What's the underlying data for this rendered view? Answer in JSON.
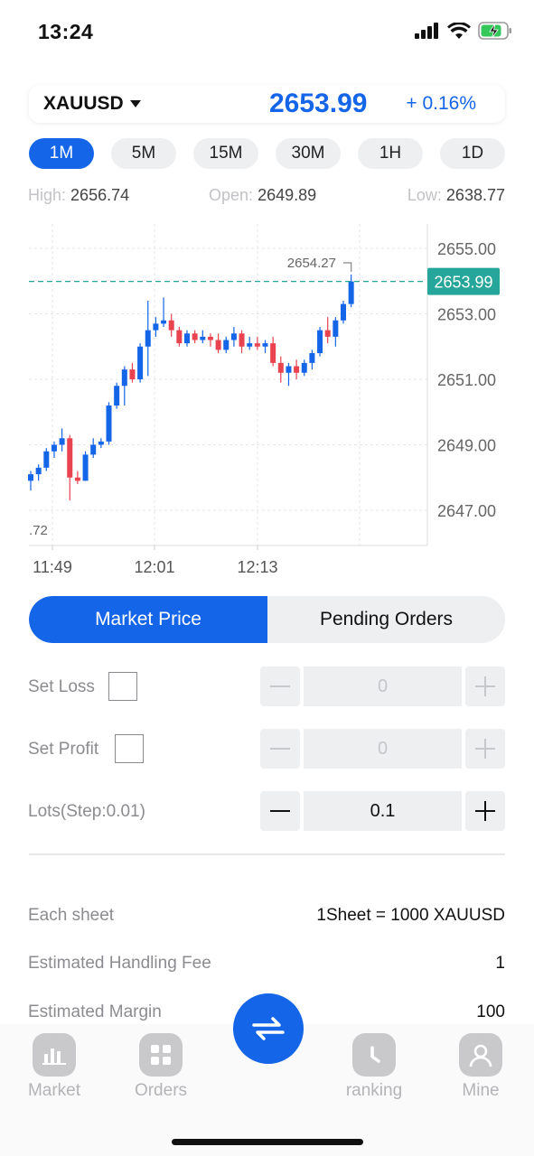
{
  "status": {
    "time": "13:24"
  },
  "ticker": {
    "symbol": "XAUUSD",
    "price": "2653.99",
    "change": "+ 0.16%"
  },
  "timeframes": [
    {
      "label": "1M",
      "active": true
    },
    {
      "label": "5M",
      "active": false
    },
    {
      "label": "15M",
      "active": false
    },
    {
      "label": "30M",
      "active": false
    },
    {
      "label": "1H",
      "active": false
    },
    {
      "label": "1D",
      "active": false
    }
  ],
  "stats": {
    "high_label": "High:",
    "high": "2656.74",
    "open_label": "Open:",
    "open": "2649.89",
    "low_label": "Low:",
    "low": "2638.77"
  },
  "chart_data": {
    "type": "candlestick",
    "y_ticks": [
      "2655.00",
      "2653.00",
      "2651.00",
      "2649.00",
      "2647.00"
    ],
    "x_ticks": [
      "11:49",
      "12:01",
      "12:13"
    ],
    "current_price_label": "2653.99",
    "high_marker": "2654.27",
    "low_marker_partial": ".72",
    "grid": true,
    "colors": {
      "up": "#1565e8",
      "down": "#e8434f",
      "price_line": "#26a69a"
    },
    "candles": [
      {
        "o": 2647.9,
        "h": 2648.2,
        "l": 2647.6,
        "c": 2648.1
      },
      {
        "o": 2648.1,
        "h": 2648.4,
        "l": 2647.9,
        "c": 2648.3
      },
      {
        "o": 2648.3,
        "h": 2648.9,
        "l": 2648.2,
        "c": 2648.8
      },
      {
        "o": 2648.8,
        "h": 2649.1,
        "l": 2648.6,
        "c": 2649.0
      },
      {
        "o": 2649.0,
        "h": 2649.5,
        "l": 2648.8,
        "c": 2649.2
      },
      {
        "o": 2649.2,
        "h": 2649.3,
        "l": 2647.3,
        "c": 2648.0
      },
      {
        "o": 2648.0,
        "h": 2648.2,
        "l": 2647.8,
        "c": 2647.9
      },
      {
        "o": 2647.9,
        "h": 2648.8,
        "l": 2647.9,
        "c": 2648.7
      },
      {
        "o": 2648.7,
        "h": 2649.2,
        "l": 2648.6,
        "c": 2649.0
      },
      {
        "o": 2649.0,
        "h": 2649.2,
        "l": 2648.9,
        "c": 2649.1
      },
      {
        "o": 2649.1,
        "h": 2650.3,
        "l": 2649.0,
        "c": 2650.2
      },
      {
        "o": 2650.2,
        "h": 2650.9,
        "l": 2650.1,
        "c": 2650.8
      },
      {
        "o": 2650.8,
        "h": 2651.4,
        "l": 2650.2,
        "c": 2651.3
      },
      {
        "o": 2651.3,
        "h": 2651.5,
        "l": 2650.9,
        "c": 2651.0
      },
      {
        "o": 2651.0,
        "h": 2652.1,
        "l": 2650.9,
        "c": 2652.0
      },
      {
        "o": 2652.0,
        "h": 2653.4,
        "l": 2651.1,
        "c": 2652.5
      },
      {
        "o": 2652.5,
        "h": 2652.9,
        "l": 2652.3,
        "c": 2652.7
      },
      {
        "o": 2652.7,
        "h": 2653.5,
        "l": 2652.6,
        "c": 2652.8
      },
      {
        "o": 2652.8,
        "h": 2653.0,
        "l": 2652.3,
        "c": 2652.5
      },
      {
        "o": 2652.5,
        "h": 2652.6,
        "l": 2652.0,
        "c": 2652.1
      },
      {
        "o": 2652.1,
        "h": 2652.5,
        "l": 2652.0,
        "c": 2652.4
      },
      {
        "o": 2652.4,
        "h": 2652.5,
        "l": 2652.1,
        "c": 2652.2
      },
      {
        "o": 2652.2,
        "h": 2652.5,
        "l": 2652.1,
        "c": 2652.3
      },
      {
        "o": 2652.3,
        "h": 2652.4,
        "l": 2652.0,
        "c": 2652.2
      },
      {
        "o": 2652.2,
        "h": 2652.4,
        "l": 2651.8,
        "c": 2651.9
      },
      {
        "o": 2651.9,
        "h": 2652.3,
        "l": 2651.8,
        "c": 2652.2
      },
      {
        "o": 2652.2,
        "h": 2652.6,
        "l": 2652.0,
        "c": 2652.4
      },
      {
        "o": 2652.4,
        "h": 2652.5,
        "l": 2651.8,
        "c": 2652.0
      },
      {
        "o": 2652.0,
        "h": 2652.3,
        "l": 2651.9,
        "c": 2652.1
      },
      {
        "o": 2652.1,
        "h": 2652.3,
        "l": 2651.9,
        "c": 2652.0
      },
      {
        "o": 2652.0,
        "h": 2652.2,
        "l": 2651.8,
        "c": 2652.1
      },
      {
        "o": 2652.1,
        "h": 2652.3,
        "l": 2651.4,
        "c": 2651.5
      },
      {
        "o": 2651.5,
        "h": 2651.7,
        "l": 2650.9,
        "c": 2651.2
      },
      {
        "o": 2651.2,
        "h": 2651.5,
        "l": 2650.8,
        "c": 2651.4
      },
      {
        "o": 2651.4,
        "h": 2651.6,
        "l": 2651.0,
        "c": 2651.2
      },
      {
        "o": 2651.2,
        "h": 2651.6,
        "l": 2651.1,
        "c": 2651.5
      },
      {
        "o": 2651.5,
        "h": 2651.9,
        "l": 2651.3,
        "c": 2651.8
      },
      {
        "o": 2651.8,
        "h": 2652.6,
        "l": 2651.7,
        "c": 2652.5
      },
      {
        "o": 2652.5,
        "h": 2652.9,
        "l": 2652.1,
        "c": 2652.3
      },
      {
        "o": 2652.3,
        "h": 2652.9,
        "l": 2652.0,
        "c": 2652.8
      },
      {
        "o": 2652.8,
        "h": 2653.4,
        "l": 2652.7,
        "c": 2653.3
      },
      {
        "o": 2653.3,
        "h": 2654.2,
        "l": 2653.2,
        "c": 2653.99
      }
    ]
  },
  "order_tabs": {
    "market": "Market Price",
    "pending": "Pending Orders"
  },
  "form": {
    "set_loss_label": "Set Loss",
    "set_loss_value": "0",
    "set_profit_label": "Set Profit",
    "set_profit_value": "0",
    "lots_label": "Lots(Step:0.01)",
    "lots_value": "0.1"
  },
  "info": {
    "sheet_label": "Each sheet",
    "sheet_value": "1Sheet = 1000 XAUUSD",
    "fee_label": "Estimated Handling Fee",
    "fee_value": "1",
    "margin_label": "Estimated Margin",
    "margin_value": "100"
  },
  "nav": {
    "market": "Market",
    "orders": "Orders",
    "ranking": "ranking",
    "mine": "Mine"
  }
}
